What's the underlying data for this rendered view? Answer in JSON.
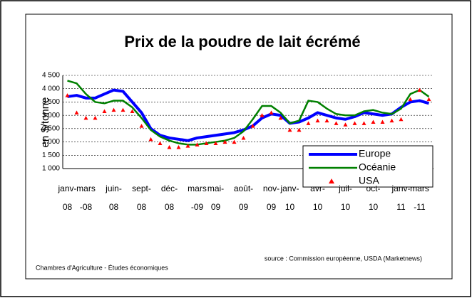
{
  "chart_data": {
    "type": "line",
    "title": "Prix de la poudre de lait écrémé",
    "ylabel": "en $/tonne",
    "source": "source : Commission européenne, USDA (Marketnews)",
    "footer": "Chambres d'Agriculture - Études économiques",
    "x": [
      "2008-01",
      "2008-02",
      "2008-03",
      "2008-04",
      "2008-05",
      "2008-06",
      "2008-07",
      "2008-08",
      "2008-09",
      "2008-10",
      "2008-11",
      "2008-12",
      "2009-01",
      "2009-02",
      "2009-03",
      "2009-04",
      "2009-05",
      "2009-06",
      "2009-07",
      "2009-08",
      "2009-09",
      "2009-10",
      "2009-11",
      "2009-12",
      "2010-01",
      "2010-02",
      "2010-03",
      "2010-04",
      "2010-05",
      "2010-06",
      "2010-07",
      "2010-08",
      "2010-09",
      "2010-10",
      "2010-11",
      "2010-12",
      "2011-01",
      "2011-02",
      "2011-03",
      "2011-04"
    ],
    "xticks": [
      {
        "value": "2008-01",
        "label": "janv-08"
      },
      {
        "value": "2008-03",
        "label": "mars-08"
      },
      {
        "value": "2008-06",
        "label": "juin-08"
      },
      {
        "value": "2008-09",
        "label": "sept-08"
      },
      {
        "value": "2008-12",
        "label": "déc-08"
      },
      {
        "value": "2009-03",
        "label": "mars-09"
      },
      {
        "value": "2009-05",
        "label": "mai-09"
      },
      {
        "value": "2009-08",
        "label": "août-09"
      },
      {
        "value": "2009-11",
        "label": "nov-09"
      },
      {
        "value": "2010-01",
        "label": "janv-10"
      },
      {
        "value": "2010-04",
        "label": "avr-10"
      },
      {
        "value": "2010-07",
        "label": "juil-10"
      },
      {
        "value": "2010-10",
        "label": "oct-10"
      },
      {
        "value": "2011-01",
        "label": "janv-11"
      },
      {
        "value": "2011-03",
        "label": "mars-11"
      }
    ],
    "ylim": [
      1000,
      4500
    ],
    "yticks": [
      {
        "value": 1000,
        "label": "1 000"
      },
      {
        "value": 1500,
        "label": "1 500"
      },
      {
        "value": 2000,
        "label": "2 000"
      },
      {
        "value": 2500,
        "label": "2 500"
      },
      {
        "value": 3000,
        "label": "3 000"
      },
      {
        "value": 3500,
        "label": "3 500"
      },
      {
        "value": 4000,
        "label": "4 000"
      },
      {
        "value": 4500,
        "label": "4 500"
      }
    ],
    "grid": true,
    "legend": "lower right",
    "series": [
      {
        "name": "Europe",
        "color": "#0000ff",
        "values": [
          3700,
          3750,
          3650,
          3650,
          3800,
          3950,
          3900,
          3500,
          3100,
          2500,
          2250,
          2150,
          2100,
          2050,
          2150,
          2200,
          2250,
          2300,
          2350,
          2450,
          2600,
          2900,
          3050,
          3000,
          2700,
          2750,
          2900,
          3100,
          3000,
          2900,
          2850,
          2950,
          3100,
          3050,
          3000,
          3050,
          3300,
          3500,
          3550,
          3450
        ]
      },
      {
        "name": "Océanie",
        "color": "#008000",
        "values": [
          4300,
          4200,
          3800,
          3500,
          3450,
          3550,
          3550,
          3300,
          2900,
          2450,
          2200,
          2050,
          1950,
          1900,
          1900,
          1950,
          2000,
          2050,
          2150,
          2400,
          2850,
          3350,
          3350,
          3100,
          2700,
          2800,
          3550,
          3500,
          3250,
          3050,
          3000,
          3000,
          3150,
          3200,
          3100,
          3050,
          3250,
          3800,
          3950,
          3700
        ]
      },
      {
        "name": "USA",
        "color": "#ff0000",
        "marker": "triangle",
        "values": [
          3750,
          3100,
          2900,
          2900,
          3150,
          3200,
          3200,
          3150,
          2600,
          2100,
          1950,
          1800,
          1800,
          1850,
          1900,
          1950,
          1950,
          2000,
          2000,
          2150,
          2600,
          3000,
          3100,
          2900,
          2450,
          2450,
          2700,
          2800,
          2800,
          2700,
          2650,
          2700,
          2700,
          2750,
          2750,
          2800,
          2850,
          3600,
          3950,
          3600
        ]
      }
    ]
  }
}
